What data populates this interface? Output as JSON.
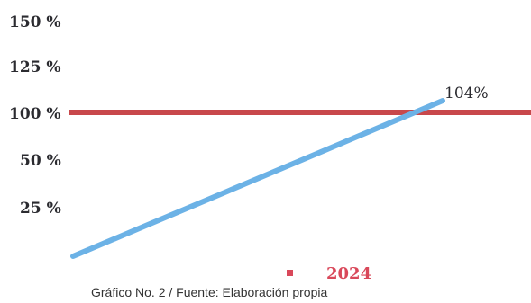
{
  "chart_data": {
    "type": "line",
    "y_tick_labels": [
      "150 %",
      "125 %",
      "100 %",
      "50 %",
      "25 %"
    ],
    "series": [
      {
        "values_start": 0,
        "values_end": 104,
        "end_label": "104%",
        "color": "#6cb2e6"
      }
    ],
    "reference_line": {
      "value": 100,
      "color": "#c8484b"
    },
    "legend": {
      "label": "2024",
      "color": "#d9485a",
      "placement": "bottom-center"
    },
    "grid": false
  },
  "caption": "Gráfico No. 2 / Fuente: Elaboración propia"
}
